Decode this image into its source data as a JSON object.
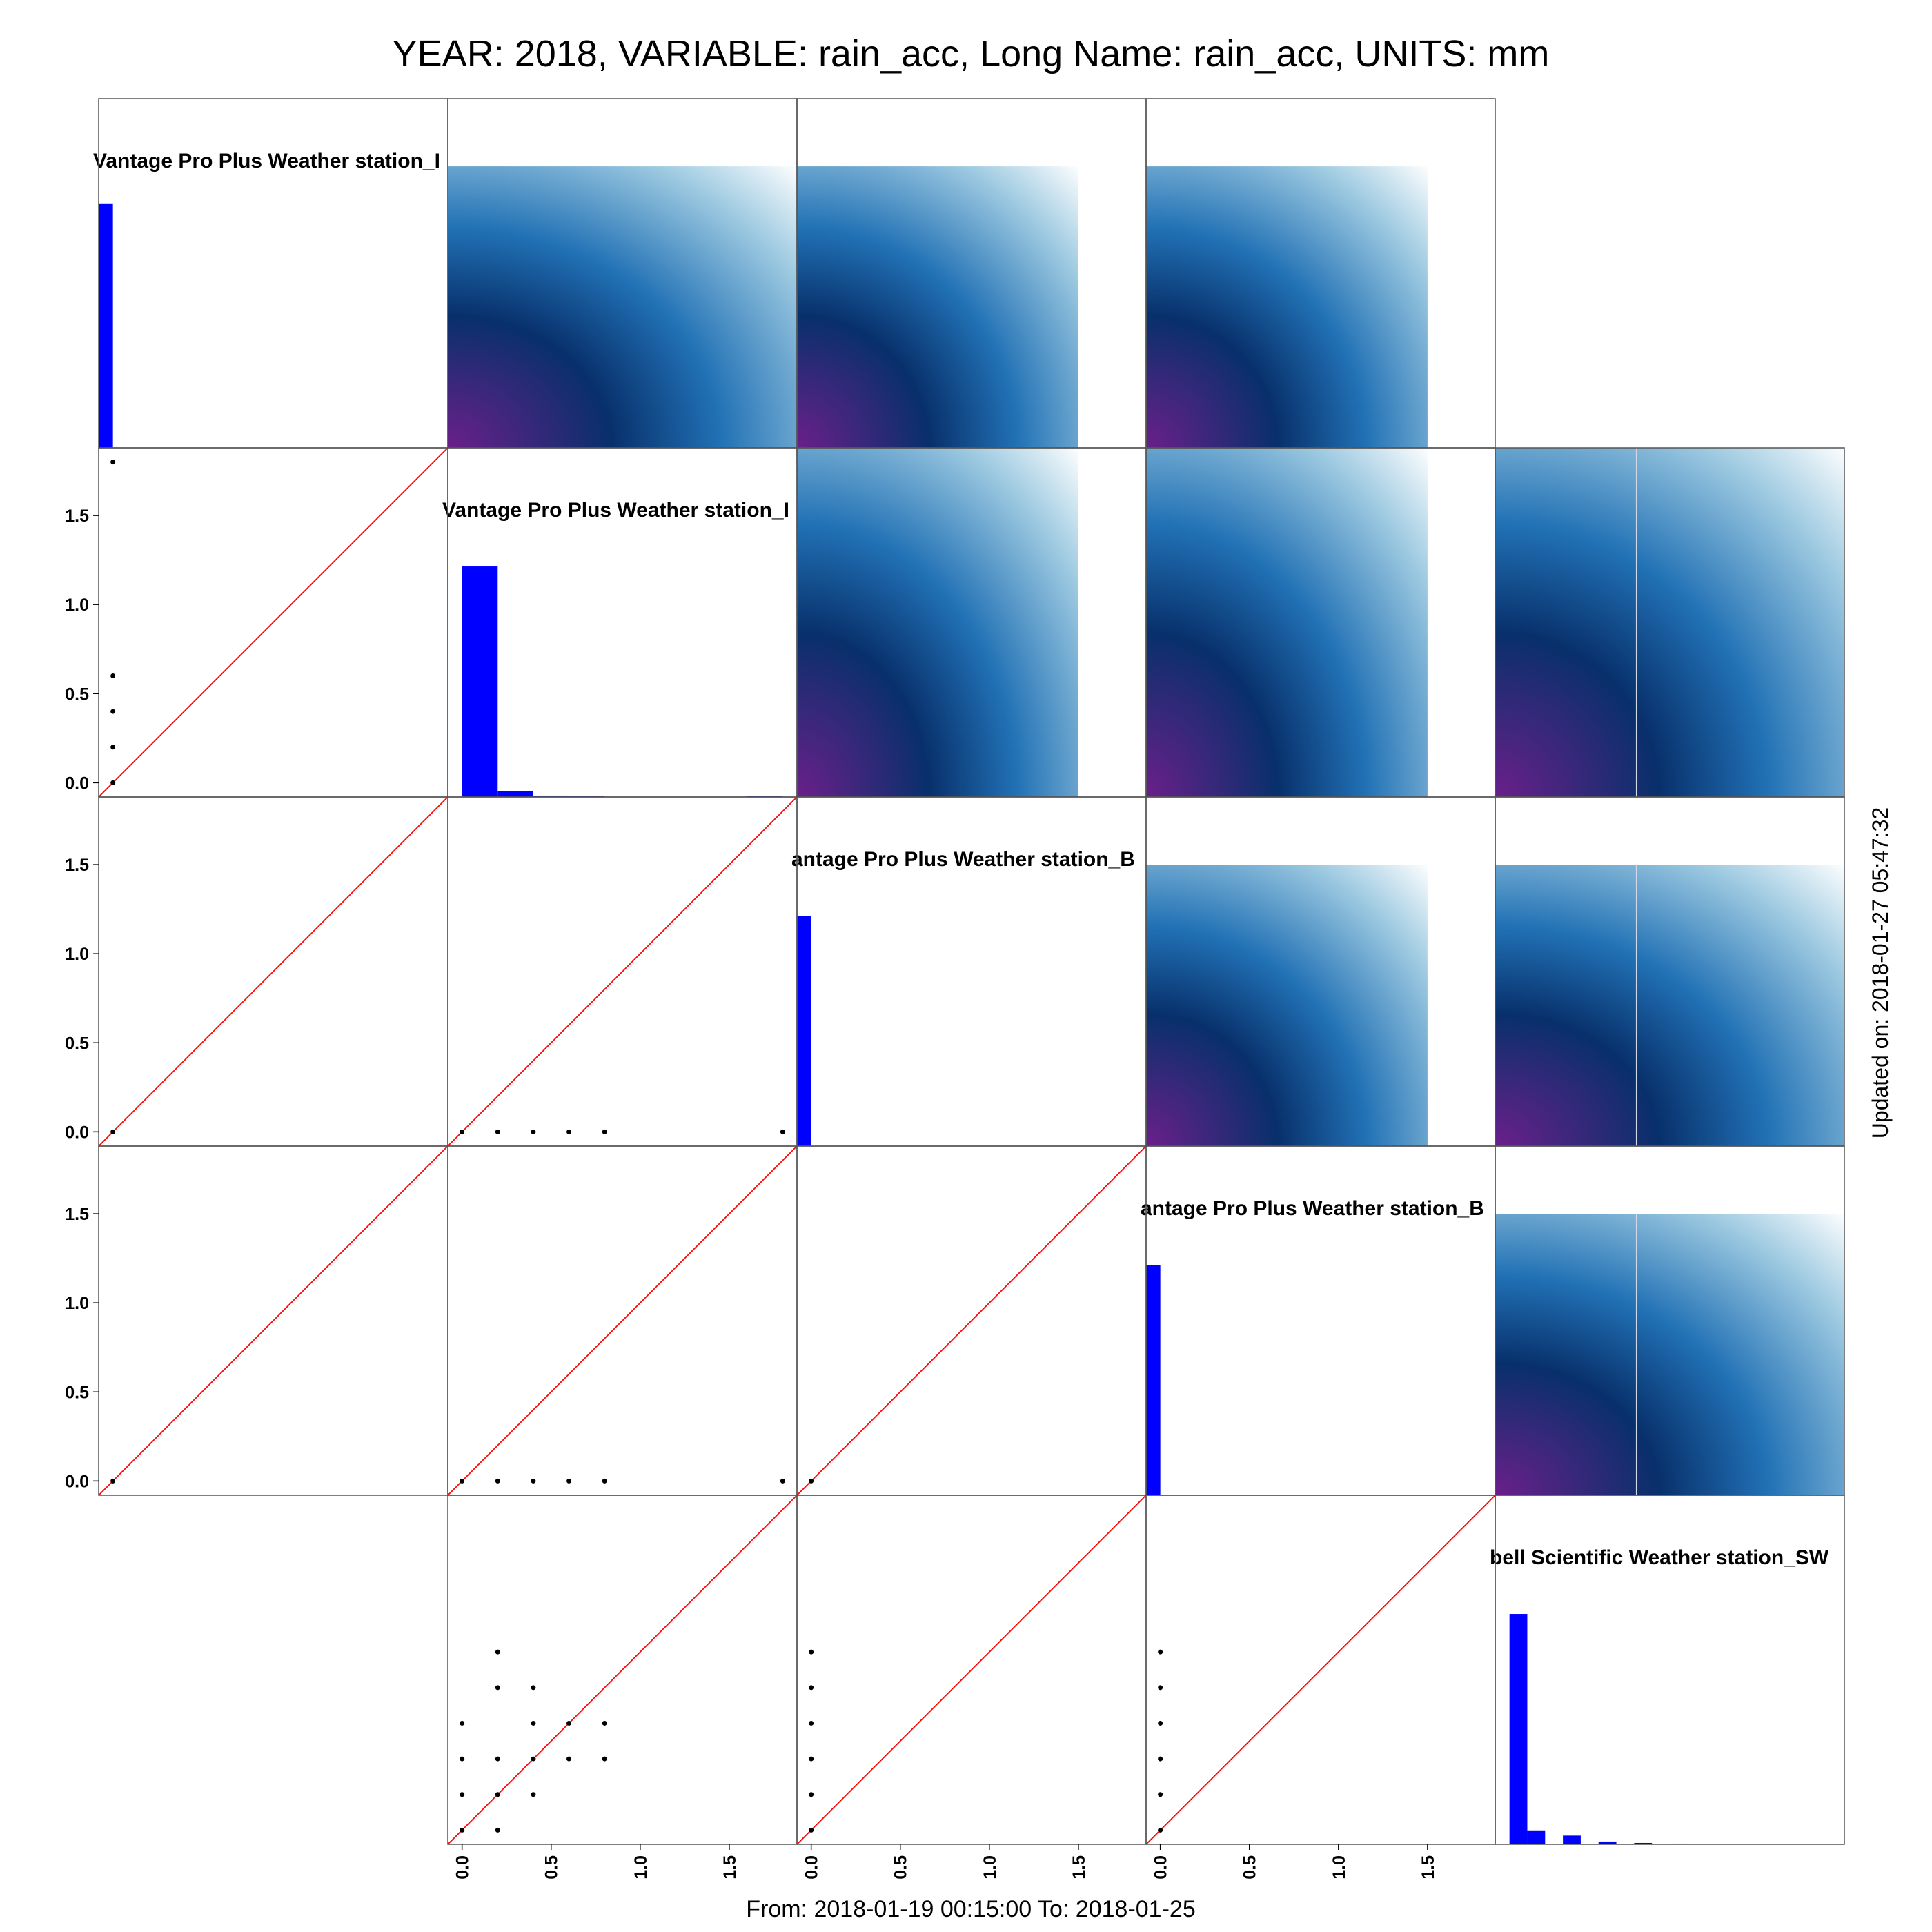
{
  "page": {
    "title": "YEAR: 2018, VARIABLE: rain_acc, Long Name: rain_acc, UNITS: mm",
    "footer": "From: 2018-01-19 00:15:00 To: 2018-01-25",
    "side_note": "Updated on: 2018-01-27 05:47:32"
  },
  "colors": {
    "histogram": "#0000ff",
    "reference_line": "#ff0000",
    "points": "#000000",
    "panel_border": "#555555",
    "density_low": "#6a1f8a",
    "density_mid": "#08306b",
    "density_high": "#2171b5",
    "density_edge": "#ffffff"
  },
  "chart_data": {
    "type": "scatter",
    "layout": "pairs-matrix",
    "variable": "rain_acc",
    "units": "mm",
    "n_vars": 5,
    "diagonal_labels": [
      "Vantage Pro Plus Weather station_I",
      "Vantage Pro Plus Weather station_I",
      "antage Pro Plus Weather station_B",
      "antage Pro Plus Weather station_B",
      "bell Scientific  Weather station_SW"
    ],
    "axis_range": [
      -0.08,
      1.88
    ],
    "ticks": [
      0.0,
      0.5,
      1.0,
      1.5
    ],
    "tick_labels": [
      "0.0",
      "0.5",
      "1.0",
      "1.5"
    ],
    "y_tick_rows": [
      1,
      2,
      3
    ],
    "x_tick_cols": [
      1,
      2,
      3
    ],
    "histograms": [
      {
        "index": 0,
        "bins": [
          {
            "x0": -0.08,
            "x1": 0.0,
            "h": 0.7
          }
        ]
      },
      {
        "index": 1,
        "bins": [
          {
            "x0": 0.0,
            "x1": 0.2,
            "h": 0.66
          },
          {
            "x0": 0.2,
            "x1": 0.4,
            "h": 0.016
          },
          {
            "x0": 0.4,
            "x1": 0.6,
            "h": 0.004
          },
          {
            "x0": 0.6,
            "x1": 0.8,
            "h": 0.003
          },
          {
            "x0": 1.6,
            "x1": 1.8,
            "h": 0.002
          }
        ]
      },
      {
        "index": 2,
        "bins": [
          {
            "x0": -0.08,
            "x1": 0.0,
            "h": 0.66
          }
        ]
      },
      {
        "index": 3,
        "bins": [
          {
            "x0": -0.08,
            "x1": 0.0,
            "h": 0.66
          }
        ]
      },
      {
        "index": 4,
        "bins": [
          {
            "x0": 0.0,
            "x1": 0.1,
            "h": 0.66
          },
          {
            "x0": 0.1,
            "x1": 0.2,
            "h": 0.04
          },
          {
            "x0": 0.3,
            "x1": 0.4,
            "h": 0.025
          },
          {
            "x0": 0.5,
            "x1": 0.6,
            "h": 0.008
          },
          {
            "x0": 0.7,
            "x1": 0.8,
            "h": 0.004
          },
          {
            "x0": 0.9,
            "x1": 1.0,
            "h": 0.002
          }
        ]
      }
    ],
    "scatter_panels": [
      {
        "row": 1,
        "col": 0,
        "diag_line": true,
        "points": [
          [
            0.0,
            0.0
          ],
          [
            0.0,
            0.2
          ],
          [
            0.0,
            0.4
          ],
          [
            0.0,
            0.6
          ],
          [
            0.0,
            1.8
          ]
        ]
      },
      {
        "row": 2,
        "col": 0,
        "diag_line": true,
        "points": [
          [
            0.0,
            0.0
          ]
        ]
      },
      {
        "row": 2,
        "col": 1,
        "diag_line": true,
        "points": [
          [
            0.0,
            0.0
          ],
          [
            0.2,
            0.0
          ],
          [
            0.4,
            0.0
          ],
          [
            0.6,
            0.0
          ],
          [
            0.8,
            0.0
          ],
          [
            1.8,
            0.0
          ]
        ]
      },
      {
        "row": 3,
        "col": 0,
        "diag_line": true,
        "points": [
          [
            0.0,
            0.0
          ]
        ]
      },
      {
        "row": 3,
        "col": 1,
        "diag_line": true,
        "points": [
          [
            0.0,
            0.0
          ],
          [
            0.2,
            0.0
          ],
          [
            0.4,
            0.0
          ],
          [
            0.6,
            0.0
          ],
          [
            0.8,
            0.0
          ],
          [
            1.8,
            0.0
          ]
        ]
      },
      {
        "row": 3,
        "col": 2,
        "diag_line": true,
        "points": [
          [
            0.0,
            0.0
          ]
        ]
      },
      {
        "row": 4,
        "col": 1,
        "diag_line": true,
        "points": [
          [
            0.0,
            0.0
          ],
          [
            0.2,
            -0.0
          ],
          [
            0.0,
            0.2
          ],
          [
            0.2,
            0.2
          ],
          [
            0.4,
            0.2
          ],
          [
            0.0,
            0.4
          ],
          [
            0.2,
            0.4
          ],
          [
            0.4,
            0.4
          ],
          [
            0.6,
            0.4
          ],
          [
            0.8,
            0.4
          ],
          [
            0.0,
            0.6
          ],
          [
            0.4,
            0.6
          ],
          [
            0.6,
            0.6
          ],
          [
            0.8,
            0.6
          ],
          [
            0.2,
            0.8
          ],
          [
            0.4,
            0.8
          ],
          [
            0.2,
            1.0
          ]
        ]
      },
      {
        "row": 4,
        "col": 2,
        "diag_line": true,
        "points": [
          [
            0.0,
            0.0
          ],
          [
            0.0,
            0.2
          ],
          [
            0.0,
            0.4
          ],
          [
            0.0,
            0.6
          ],
          [
            0.0,
            0.8
          ],
          [
            0.0,
            1.0
          ]
        ]
      },
      {
        "row": 4,
        "col": 3,
        "diag_line": true,
        "points": [
          [
            0.0,
            0.0
          ],
          [
            0.0,
            0.2
          ],
          [
            0.0,
            0.4
          ],
          [
            0.0,
            0.6
          ],
          [
            0.0,
            0.8
          ],
          [
            0.0,
            1.0
          ]
        ]
      }
    ],
    "density_panels": [
      {
        "row": 0,
        "col": 1,
        "extent": [
          -0.08,
          1.88,
          -0.08,
          1.5
        ],
        "split": false
      },
      {
        "row": 0,
        "col": 2,
        "extent": [
          -0.08,
          1.5,
          -0.08,
          1.5
        ],
        "split": false
      },
      {
        "row": 0,
        "col": 3,
        "extent": [
          -0.08,
          1.5,
          -0.08,
          1.5
        ],
        "split": false
      },
      {
        "row": 1,
        "col": 2,
        "extent": [
          -0.08,
          1.5,
          -0.08,
          1.88
        ],
        "split": false
      },
      {
        "row": 1,
        "col": 3,
        "extent": [
          -0.08,
          1.5,
          -0.08,
          1.88
        ],
        "split": false
      },
      {
        "row": 1,
        "col": 4,
        "extent": [
          -0.08,
          1.88,
          -0.08,
          1.88
        ],
        "split": true
      },
      {
        "row": 2,
        "col": 3,
        "extent": [
          -0.08,
          1.5,
          -0.08,
          1.5
        ],
        "split": false
      },
      {
        "row": 2,
        "col": 4,
        "extent": [
          -0.08,
          1.88,
          -0.08,
          1.5
        ],
        "split": true
      },
      {
        "row": 3,
        "col": 4,
        "extent": [
          -0.08,
          1.88,
          -0.08,
          1.5
        ],
        "split": true
      }
    ],
    "bordered_panels": [
      [
        0,
        0
      ],
      [
        0,
        1
      ],
      [
        0,
        2
      ],
      [
        0,
        3
      ],
      [
        1,
        0
      ],
      [
        1,
        1
      ],
      [
        1,
        2
      ],
      [
        1,
        3
      ],
      [
        1,
        4
      ],
      [
        2,
        0
      ],
      [
        2,
        1
      ],
      [
        2,
        2
      ],
      [
        2,
        3
      ],
      [
        2,
        4
      ],
      [
        3,
        0
      ],
      [
        3,
        1
      ],
      [
        3,
        2
      ],
      [
        3,
        3
      ],
      [
        3,
        4
      ],
      [
        4,
        1
      ],
      [
        4,
        2
      ],
      [
        4,
        3
      ],
      [
        4,
        4
      ]
    ]
  }
}
